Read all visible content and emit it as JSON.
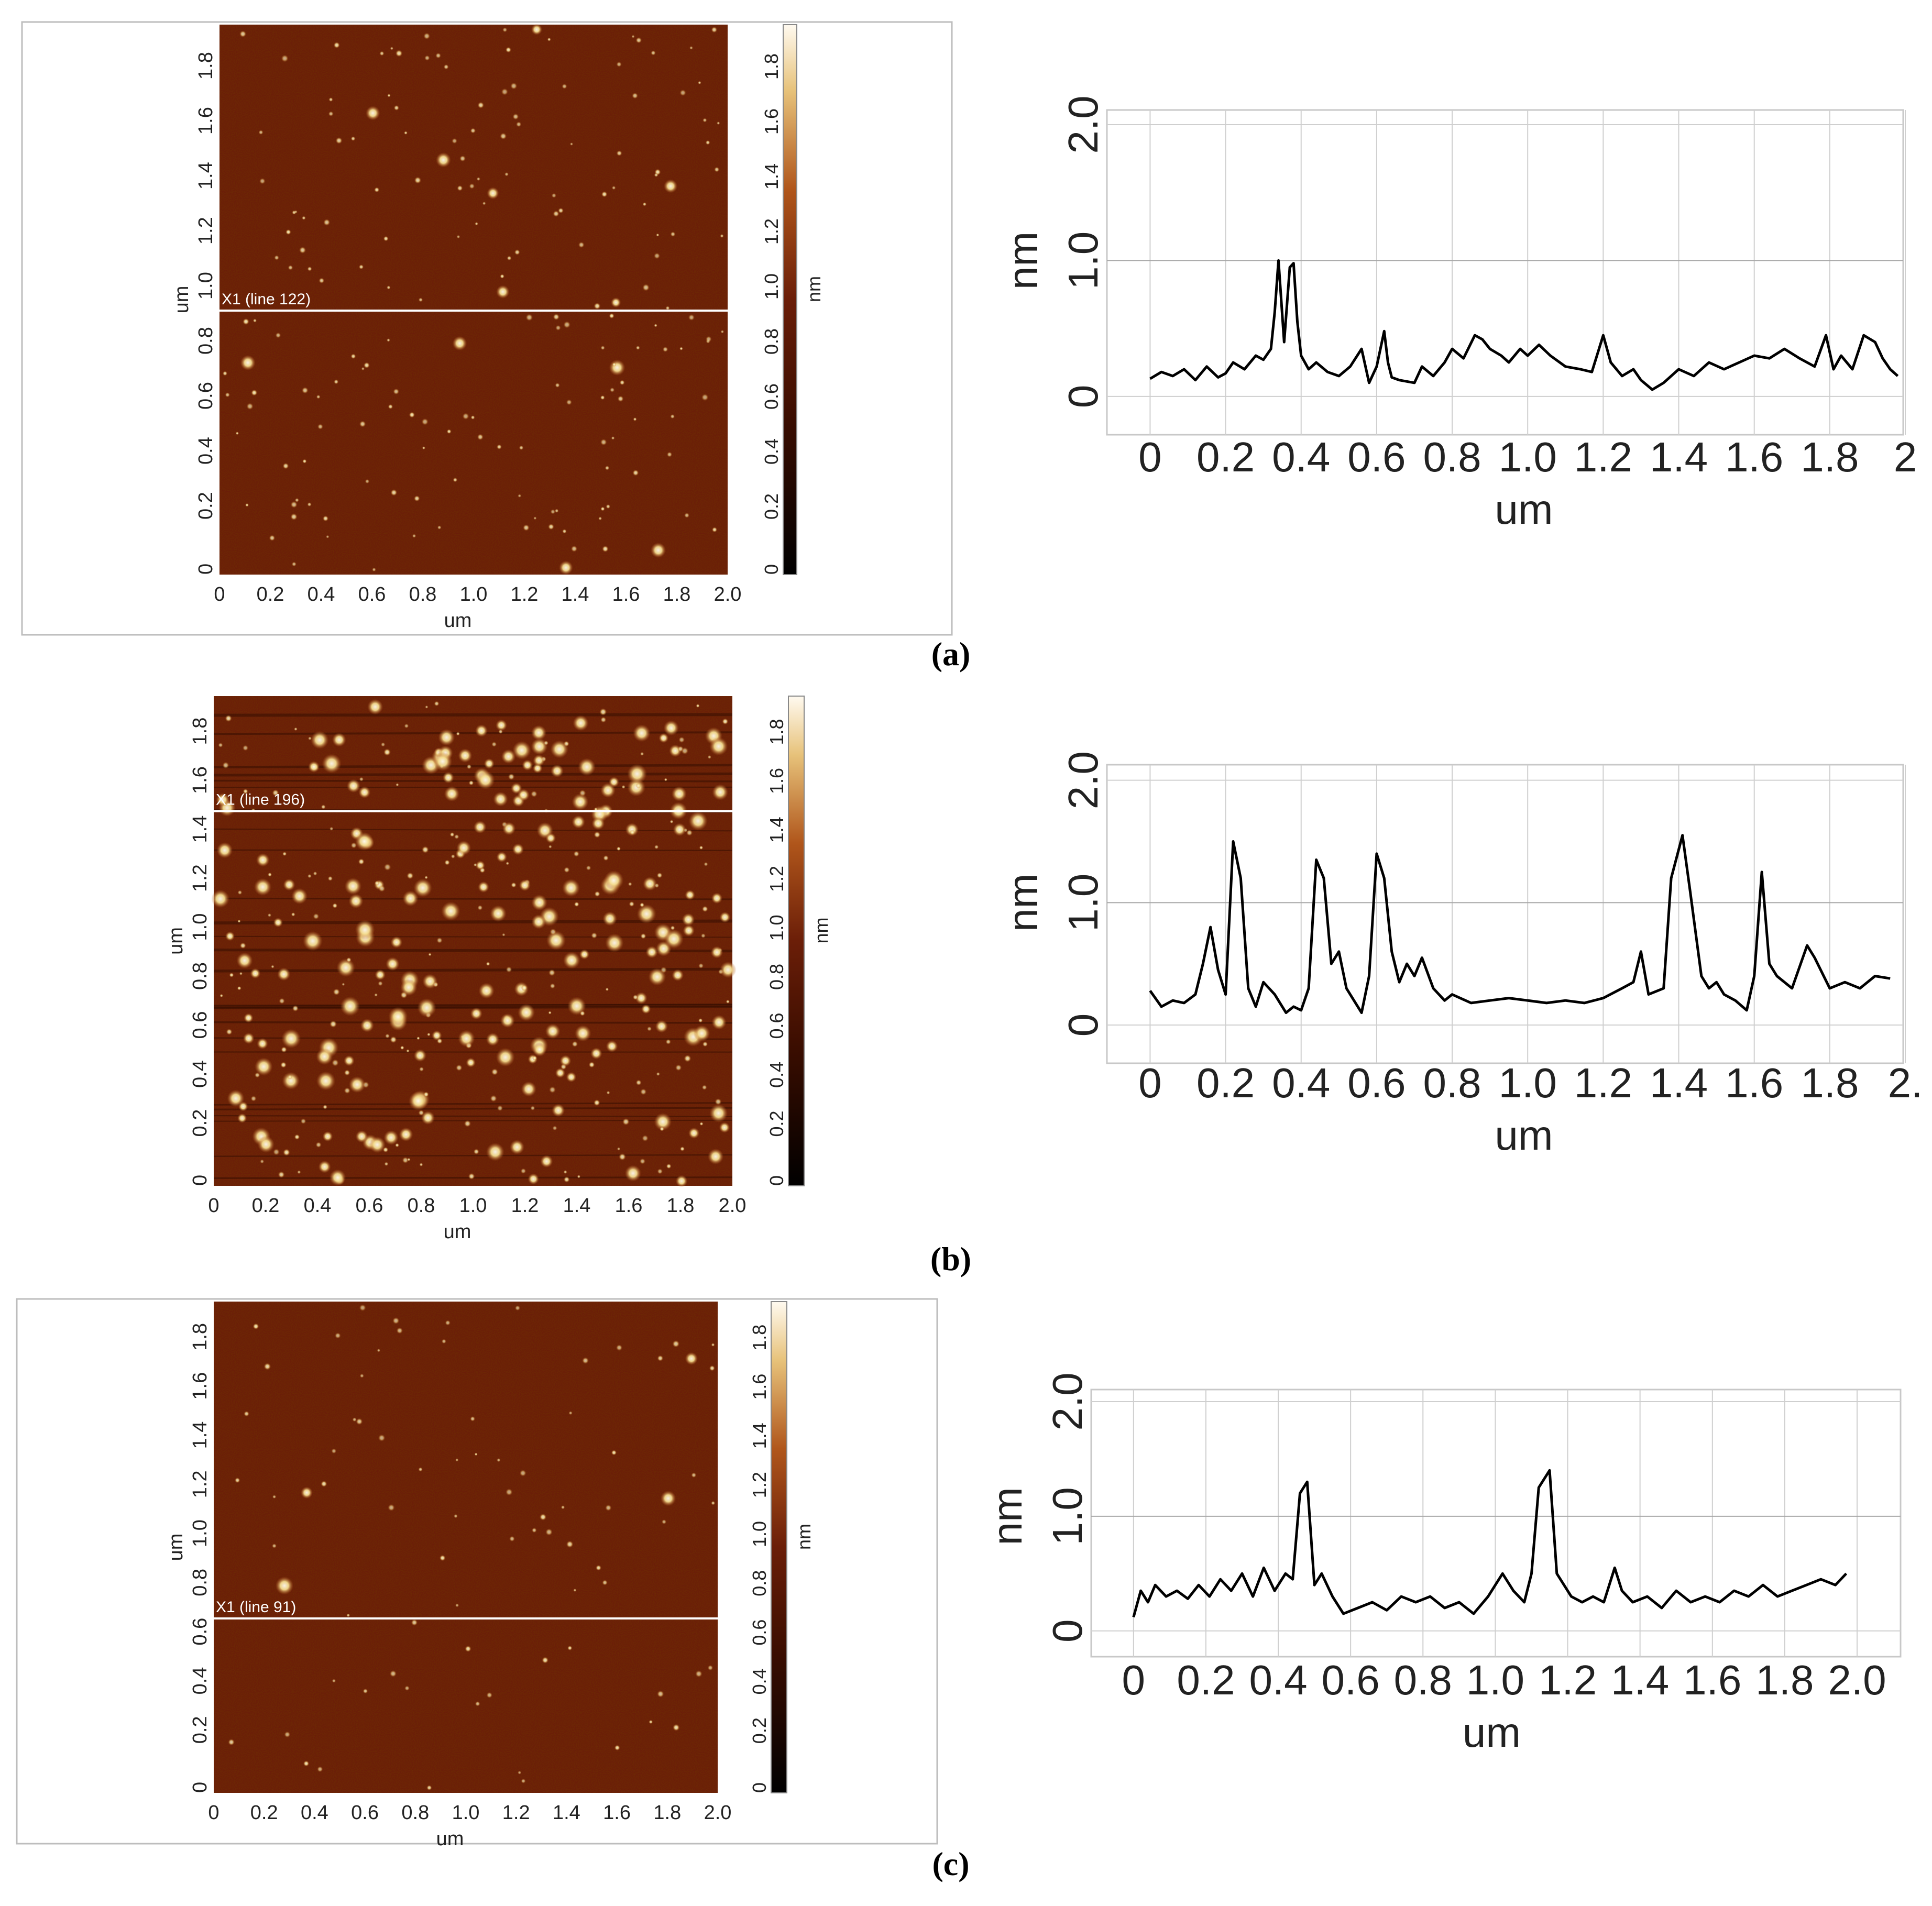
{
  "figure": {
    "panels": [
      {
        "label": "(a)",
        "image": {
          "scan_line_label": "X1 (line 122)",
          "scan_line_position_um": 0.96,
          "x_axis_label": "um",
          "y_axis_label": "um",
          "x_ticks": [
            "0",
            "0.2",
            "0.4",
            "0.6",
            "0.8",
            "1.0",
            "1.2",
            "1.4",
            "1.6",
            "1.8",
            "2.0"
          ],
          "y_ticks": [
            "0",
            "0.2",
            "0.4",
            "0.6",
            "0.8",
            "1.0",
            "1.2",
            "1.4",
            "1.6",
            "1.8"
          ],
          "colorbar_label": "nm",
          "colorbar_ticks": [
            "0",
            "0.2",
            "0.4",
            "0.6",
            "0.8",
            "1.0",
            "1.2",
            "1.4",
            "1.6",
            "1.8"
          ],
          "particle_density": "sparse"
        }
      },
      {
        "label": "(b)",
        "image": {
          "scan_line_label": "X1 (line 196)",
          "scan_line_position_um": 1.53,
          "x_axis_label": "um",
          "y_axis_label": "um",
          "x_ticks": [
            "0",
            "0.2",
            "0.4",
            "0.6",
            "0.8",
            "1.0",
            "1.2",
            "1.4",
            "1.6",
            "1.8",
            "2.0"
          ],
          "y_ticks": [
            "0",
            "0.2",
            "0.4",
            "0.6",
            "0.8",
            "1.0",
            "1.2",
            "1.4",
            "1.6",
            "1.8"
          ],
          "colorbar_label": "nm",
          "colorbar_ticks": [
            "0",
            "0.2",
            "0.4",
            "0.6",
            "0.8",
            "1.0",
            "1.2",
            "1.4",
            "1.6",
            "1.8"
          ],
          "particle_density": "dense"
        }
      },
      {
        "label": "(c)",
        "image": {
          "scan_line_label": "X1 (line 91)",
          "scan_line_position_um": 0.71,
          "x_axis_label": "um",
          "y_axis_label": "um",
          "x_ticks": [
            "0",
            "0.2",
            "0.4",
            "0.6",
            "0.8",
            "1.0",
            "1.2",
            "1.4",
            "1.6",
            "1.8",
            "2.0"
          ],
          "y_ticks": [
            "0",
            "0.2",
            "0.4",
            "0.6",
            "0.8",
            "1.0",
            "1.2",
            "1.4",
            "1.6",
            "1.8"
          ],
          "colorbar_label": "nm",
          "colorbar_ticks": [
            "0",
            "0.2",
            "0.4",
            "0.6",
            "0.8",
            "1.0",
            "1.2",
            "1.4",
            "1.6",
            "1.8"
          ],
          "particle_density": "very sparse"
        }
      }
    ],
    "colors": {
      "afm_dark": "#2a0a00",
      "afm_base": "#6b1e08",
      "afm_mid": "#b0561b",
      "afm_bright": "#f4dc8e",
      "afm_white": "#fffaf0",
      "scan_line": "#ffffff",
      "profile_line": "#000000",
      "grid": "#cfcfcf"
    }
  },
  "chart_data": [
    {
      "type": "line",
      "panel": "(a)",
      "xlabel": "um",
      "ylabel": "nm",
      "x_tick_labels": [
        "0",
        "0.2",
        "0.4",
        "0.6",
        "0.8",
        "1.0",
        "1.2",
        "1.4",
        "1.6",
        "1.8",
        "2"
      ],
      "y_tick_labels": [
        "0",
        "1.0",
        "2.0"
      ],
      "xlim": [
        -0.02,
        2.0
      ],
      "ylim": [
        -0.12,
        2.05
      ],
      "grid": true,
      "series": [
        {
          "x": [
            0,
            0.03,
            0.06,
            0.09,
            0.12,
            0.15,
            0.18,
            0.2,
            0.22,
            0.25,
            0.28,
            0.3,
            0.32,
            0.33,
            0.34,
            0.355,
            0.37,
            0.38,
            0.39,
            0.4,
            0.42,
            0.44,
            0.47,
            0.5,
            0.53,
            0.56,
            0.58,
            0.6,
            0.62,
            0.63,
            0.64,
            0.66,
            0.7,
            0.72,
            0.75,
            0.78,
            0.8,
            0.83,
            0.86,
            0.88,
            0.9,
            0.93,
            0.95,
            0.98,
            1.0,
            1.03,
            1.06,
            1.1,
            1.14,
            1.17,
            1.2,
            1.22,
            1.25,
            1.28,
            1.3,
            1.33,
            1.36,
            1.4,
            1.44,
            1.48,
            1.52,
            1.56,
            1.6,
            1.64,
            1.68,
            1.72,
            1.76,
            1.79,
            1.81,
            1.83,
            1.86,
            1.89,
            1.92,
            1.94,
            1.96,
            1.98
          ],
          "y": [
            0.13,
            0.18,
            0.15,
            0.2,
            0.12,
            0.22,
            0.14,
            0.17,
            0.25,
            0.2,
            0.3,
            0.27,
            0.35,
            0.62,
            1.0,
            0.4,
            0.95,
            0.98,
            0.55,
            0.3,
            0.2,
            0.25,
            0.18,
            0.15,
            0.22,
            0.35,
            0.1,
            0.22,
            0.48,
            0.25,
            0.14,
            0.12,
            0.1,
            0.22,
            0.15,
            0.25,
            0.35,
            0.28,
            0.45,
            0.42,
            0.35,
            0.3,
            0.25,
            0.35,
            0.3,
            0.38,
            0.3,
            0.22,
            0.2,
            0.18,
            0.45,
            0.25,
            0.15,
            0.2,
            0.12,
            0.05,
            0.1,
            0.2,
            0.15,
            0.25,
            0.2,
            0.25,
            0.3,
            0.28,
            0.35,
            0.28,
            0.22,
            0.45,
            0.2,
            0.3,
            0.2,
            0.45,
            0.4,
            0.28,
            0.2,
            0.15
          ]
        }
      ]
    },
    {
      "type": "line",
      "panel": "(b)",
      "xlabel": "um",
      "ylabel": "nm",
      "x_tick_labels": [
        "0",
        "0.2",
        "0.4",
        "0.6",
        "0.8",
        "1.0",
        "1.2",
        "1.4",
        "1.6",
        "1.8",
        "2."
      ],
      "y_tick_labels": [
        "0",
        "1.0",
        "2.0"
      ],
      "xlim": [
        -0.02,
        2.0
      ],
      "ylim": [
        -0.12,
        2.05
      ],
      "grid": true,
      "series": [
        {
          "x": [
            0,
            0.03,
            0.06,
            0.09,
            0.12,
            0.14,
            0.16,
            0.18,
            0.2,
            0.22,
            0.24,
            0.26,
            0.28,
            0.3,
            0.33,
            0.36,
            0.38,
            0.4,
            0.42,
            0.44,
            0.46,
            0.48,
            0.5,
            0.52,
            0.54,
            0.56,
            0.58,
            0.6,
            0.62,
            0.64,
            0.66,
            0.68,
            0.7,
            0.72,
            0.75,
            0.78,
            0.8,
            0.85,
            0.9,
            0.95,
            1.0,
            1.05,
            1.1,
            1.15,
            1.2,
            1.25,
            1.28,
            1.3,
            1.32,
            1.36,
            1.38,
            1.41,
            1.43,
            1.46,
            1.48,
            1.5,
            1.52,
            1.55,
            1.58,
            1.6,
            1.62,
            1.64,
            1.66,
            1.7,
            1.74,
            1.76,
            1.8,
            1.84,
            1.88,
            1.92,
            1.96
          ],
          "y": [
            0.28,
            0.15,
            0.2,
            0.18,
            0.25,
            0.5,
            0.8,
            0.45,
            0.25,
            1.5,
            1.2,
            0.3,
            0.15,
            0.35,
            0.25,
            0.1,
            0.15,
            0.12,
            0.3,
            1.35,
            1.2,
            0.5,
            0.6,
            0.3,
            0.2,
            0.1,
            0.4,
            1.4,
            1.2,
            0.6,
            0.35,
            0.5,
            0.4,
            0.55,
            0.3,
            0.2,
            0.25,
            0.18,
            0.2,
            0.22,
            0.2,
            0.18,
            0.2,
            0.18,
            0.22,
            0.3,
            0.35,
            0.6,
            0.25,
            0.3,
            1.2,
            1.55,
            1.1,
            0.4,
            0.3,
            0.35,
            0.25,
            0.2,
            0.12,
            0.4,
            1.25,
            0.5,
            0.4,
            0.3,
            0.65,
            0.55,
            0.3,
            0.35,
            0.3,
            0.4,
            0.38
          ]
        }
      ]
    },
    {
      "type": "line",
      "panel": "(c)",
      "xlabel": "um",
      "ylabel": "nm",
      "x_tick_labels": [
        "0",
        "0.2",
        "0.4",
        "0.6",
        "0.8",
        "1.0",
        "1.2",
        "1.4",
        "1.6",
        "1.8",
        "2.0"
      ],
      "y_tick_labels": [
        "0",
        "1.0",
        "2.0"
      ],
      "xlim": [
        -0.02,
        2.0
      ],
      "ylim": [
        -0.12,
        2.05
      ],
      "grid": true,
      "series": [
        {
          "x": [
            0,
            0.02,
            0.04,
            0.06,
            0.09,
            0.12,
            0.15,
            0.18,
            0.21,
            0.24,
            0.27,
            0.3,
            0.33,
            0.36,
            0.39,
            0.42,
            0.44,
            0.46,
            0.48,
            0.5,
            0.52,
            0.55,
            0.58,
            0.62,
            0.66,
            0.7,
            0.74,
            0.78,
            0.82,
            0.86,
            0.9,
            0.94,
            0.98,
            1.02,
            1.05,
            1.08,
            1.1,
            1.12,
            1.15,
            1.17,
            1.19,
            1.21,
            1.24,
            1.27,
            1.3,
            1.33,
            1.35,
            1.38,
            1.42,
            1.46,
            1.5,
            1.54,
            1.58,
            1.62,
            1.66,
            1.7,
            1.74,
            1.78,
            1.82,
            1.86,
            1.9,
            1.94,
            1.97
          ],
          "y": [
            0.12,
            0.35,
            0.25,
            0.4,
            0.3,
            0.35,
            0.28,
            0.4,
            0.3,
            0.45,
            0.35,
            0.5,
            0.3,
            0.55,
            0.35,
            0.5,
            0.45,
            1.2,
            1.3,
            0.4,
            0.5,
            0.3,
            0.15,
            0.2,
            0.25,
            0.18,
            0.3,
            0.25,
            0.3,
            0.2,
            0.25,
            0.15,
            0.3,
            0.5,
            0.35,
            0.25,
            0.5,
            1.25,
            1.4,
            0.5,
            0.4,
            0.3,
            0.25,
            0.3,
            0.25,
            0.55,
            0.35,
            0.25,
            0.3,
            0.2,
            0.35,
            0.25,
            0.3,
            0.25,
            0.35,
            0.3,
            0.4,
            0.3,
            0.35,
            0.4,
            0.45,
            0.4,
            0.5
          ]
        }
      ]
    }
  ]
}
